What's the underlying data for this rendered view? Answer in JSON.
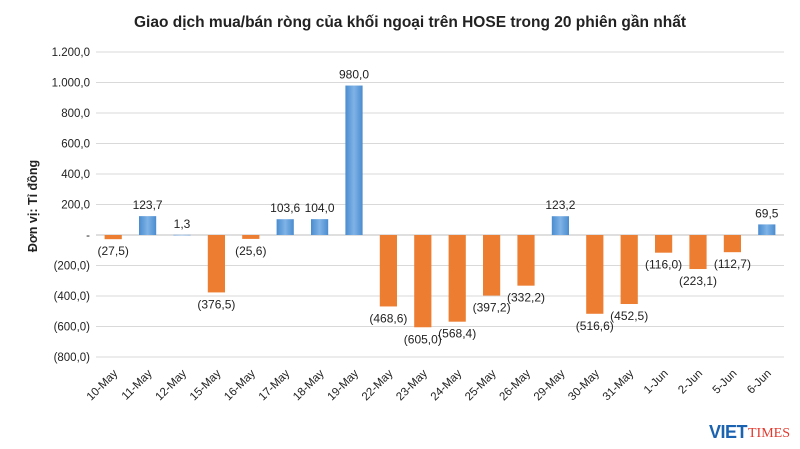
{
  "chart_data": {
    "type": "bar",
    "title": "Giao dịch mua/bán ròng của khối ngoại trên HOSE trong 20 phiên gần nhất",
    "ylabel": "Đơn vị: Tỉ đồng",
    "ylim": [
      -800,
      1200
    ],
    "yticks": [
      1200,
      1000,
      800,
      600,
      400,
      200,
      0,
      -200,
      -400,
      -600,
      -800
    ],
    "ytick_labels": [
      "1.200,0",
      "1.000,0",
      "800,0",
      "600,0",
      "400,0",
      "200,0",
      "-",
      "(200,0)",
      "(400,0)",
      "(600,0)",
      "(800,0)"
    ],
    "categories": [
      "10-May",
      "11-May",
      "12-May",
      "15-May",
      "16-May",
      "17-May",
      "18-May",
      "19-May",
      "22-May",
      "23-May",
      "24-May",
      "25-May",
      "26-May",
      "29-May",
      "30-May",
      "31-May",
      "1-Jun",
      "2-Jun",
      "5-Jun",
      "6-Jun"
    ],
    "values": [
      -27.5,
      123.7,
      1.3,
      -376.5,
      -25.6,
      103.6,
      104.0,
      980.0,
      -468.6,
      -605.0,
      -568.4,
      -397.2,
      -332.2,
      123.2,
      -516.6,
      -452.5,
      -116.0,
      -223.1,
      -112.7,
      69.5
    ],
    "data_labels": [
      "(27,5)",
      "123,7",
      "1,3",
      "(376,5)",
      "(25,6)",
      "103,6",
      "104,0",
      "980,0",
      "(468,6)",
      "(605,0)",
      "(568,4)",
      "(397,2)",
      "(332,2)",
      "123,2",
      "(516,6)",
      "(452,5)",
      "(116,0)",
      "(223,1)",
      "(112,7)",
      "69,5"
    ],
    "colors": {
      "positive": "#5b9bd5",
      "negative": "#ed7d31"
    },
    "grid": true,
    "legend": "none"
  },
  "logo": {
    "part1": "VIET",
    "part2": "TIMES"
  }
}
